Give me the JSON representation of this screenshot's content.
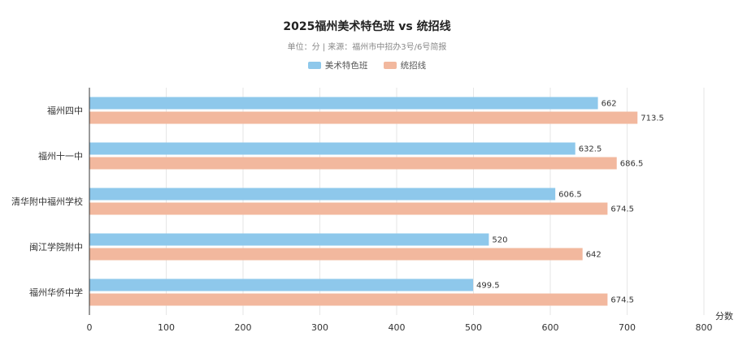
{
  "chart_data": {
    "type": "bar",
    "orientation": "horizontal",
    "title": "2025福州美术特色班 vs 统招线",
    "subtitle": "单位：分 | 来源：福州市中招办3号/6号简报",
    "xlabel": "分数",
    "ylabel": "",
    "xlim": [
      0,
      800
    ],
    "x_ticks": [
      0,
      100,
      200,
      300,
      400,
      500,
      600,
      700,
      800
    ],
    "grid": "vertical",
    "legend_position": "top-center",
    "categories": [
      "福州四中",
      "福州十一中",
      "清华附中福州学校",
      "闽江学院附中",
      "福州华侨中学"
    ],
    "series": [
      {
        "name": "美术特色班",
        "color": "#8ec8eb",
        "values": [
          662,
          632.5,
          606.5,
          520,
          499.5
        ]
      },
      {
        "name": "统招线",
        "color": "#f2b89e",
        "values": [
          713.5,
          686.5,
          674.5,
          642,
          674.5
        ]
      }
    ]
  }
}
